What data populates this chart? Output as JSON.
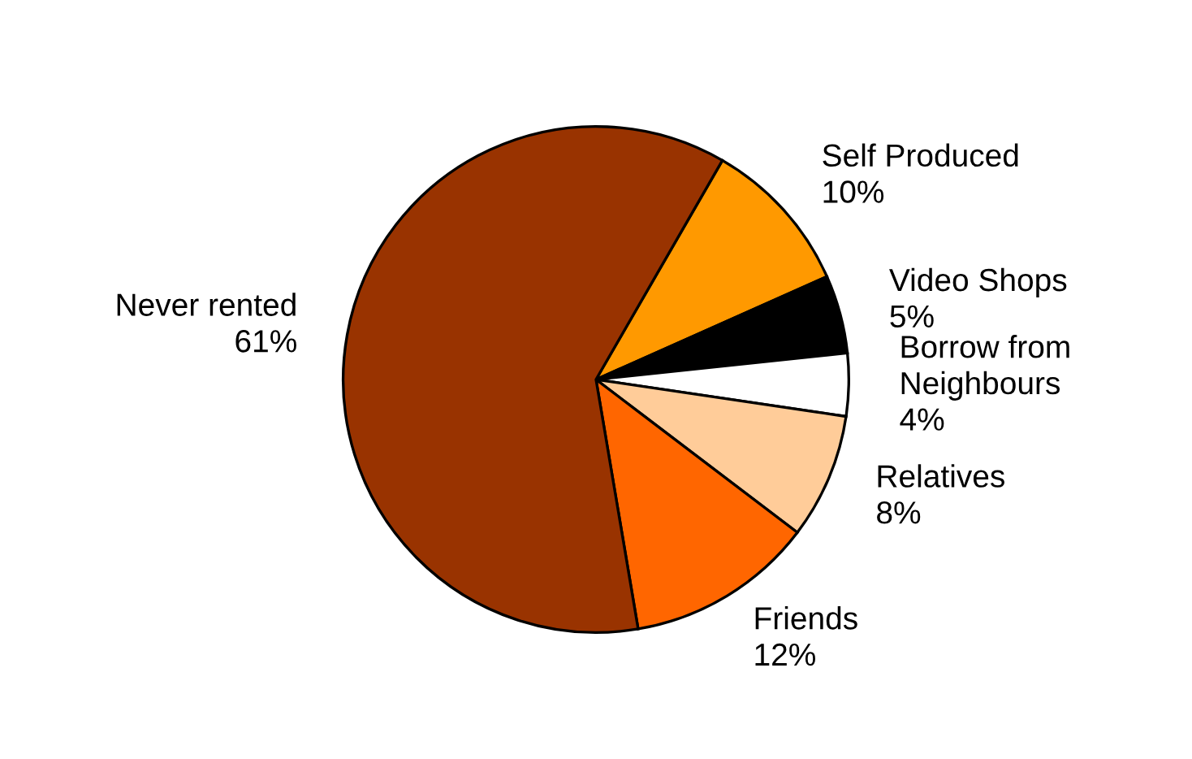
{
  "chart_data": {
    "type": "pie",
    "categories": [
      "Self Produced",
      "Video Shops",
      "Borrow from\nNeighbours",
      "Relatives",
      "Friends",
      "Never rented"
    ],
    "values": [
      10,
      5,
      4,
      8,
      12,
      61
    ],
    "value_labels": [
      "10%",
      "5%",
      "4%",
      "8%",
      "12%",
      "61%"
    ],
    "colors": [
      "#ff9900",
      "#000000",
      "#ffffff",
      "#ffcc99",
      "#ff6600",
      "#993300"
    ]
  }
}
